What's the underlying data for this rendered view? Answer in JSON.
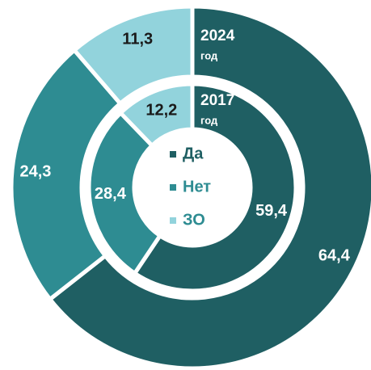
{
  "chart_data": {
    "type": "donut",
    "categories": [
      "Да",
      "Нет",
      "ЗО"
    ],
    "colors": [
      "#1f5f63",
      "#2e8c92",
      "#92d3dc"
    ],
    "label_colors": [
      "#ffffff",
      "#ffffff",
      "#1a1a1a"
    ],
    "legend": "center",
    "series": [
      {
        "name": "2024",
        "unit": "год",
        "values": [
          64.4,
          24.3,
          11.3
        ],
        "value_labels": [
          "64,4",
          "24,3",
          "11,3"
        ]
      },
      {
        "name": "2017",
        "unit": "год",
        "values": [
          59.4,
          28.4,
          12.2
        ],
        "value_labels": [
          "59,4",
          "28,4",
          "12,2"
        ]
      }
    ]
  }
}
